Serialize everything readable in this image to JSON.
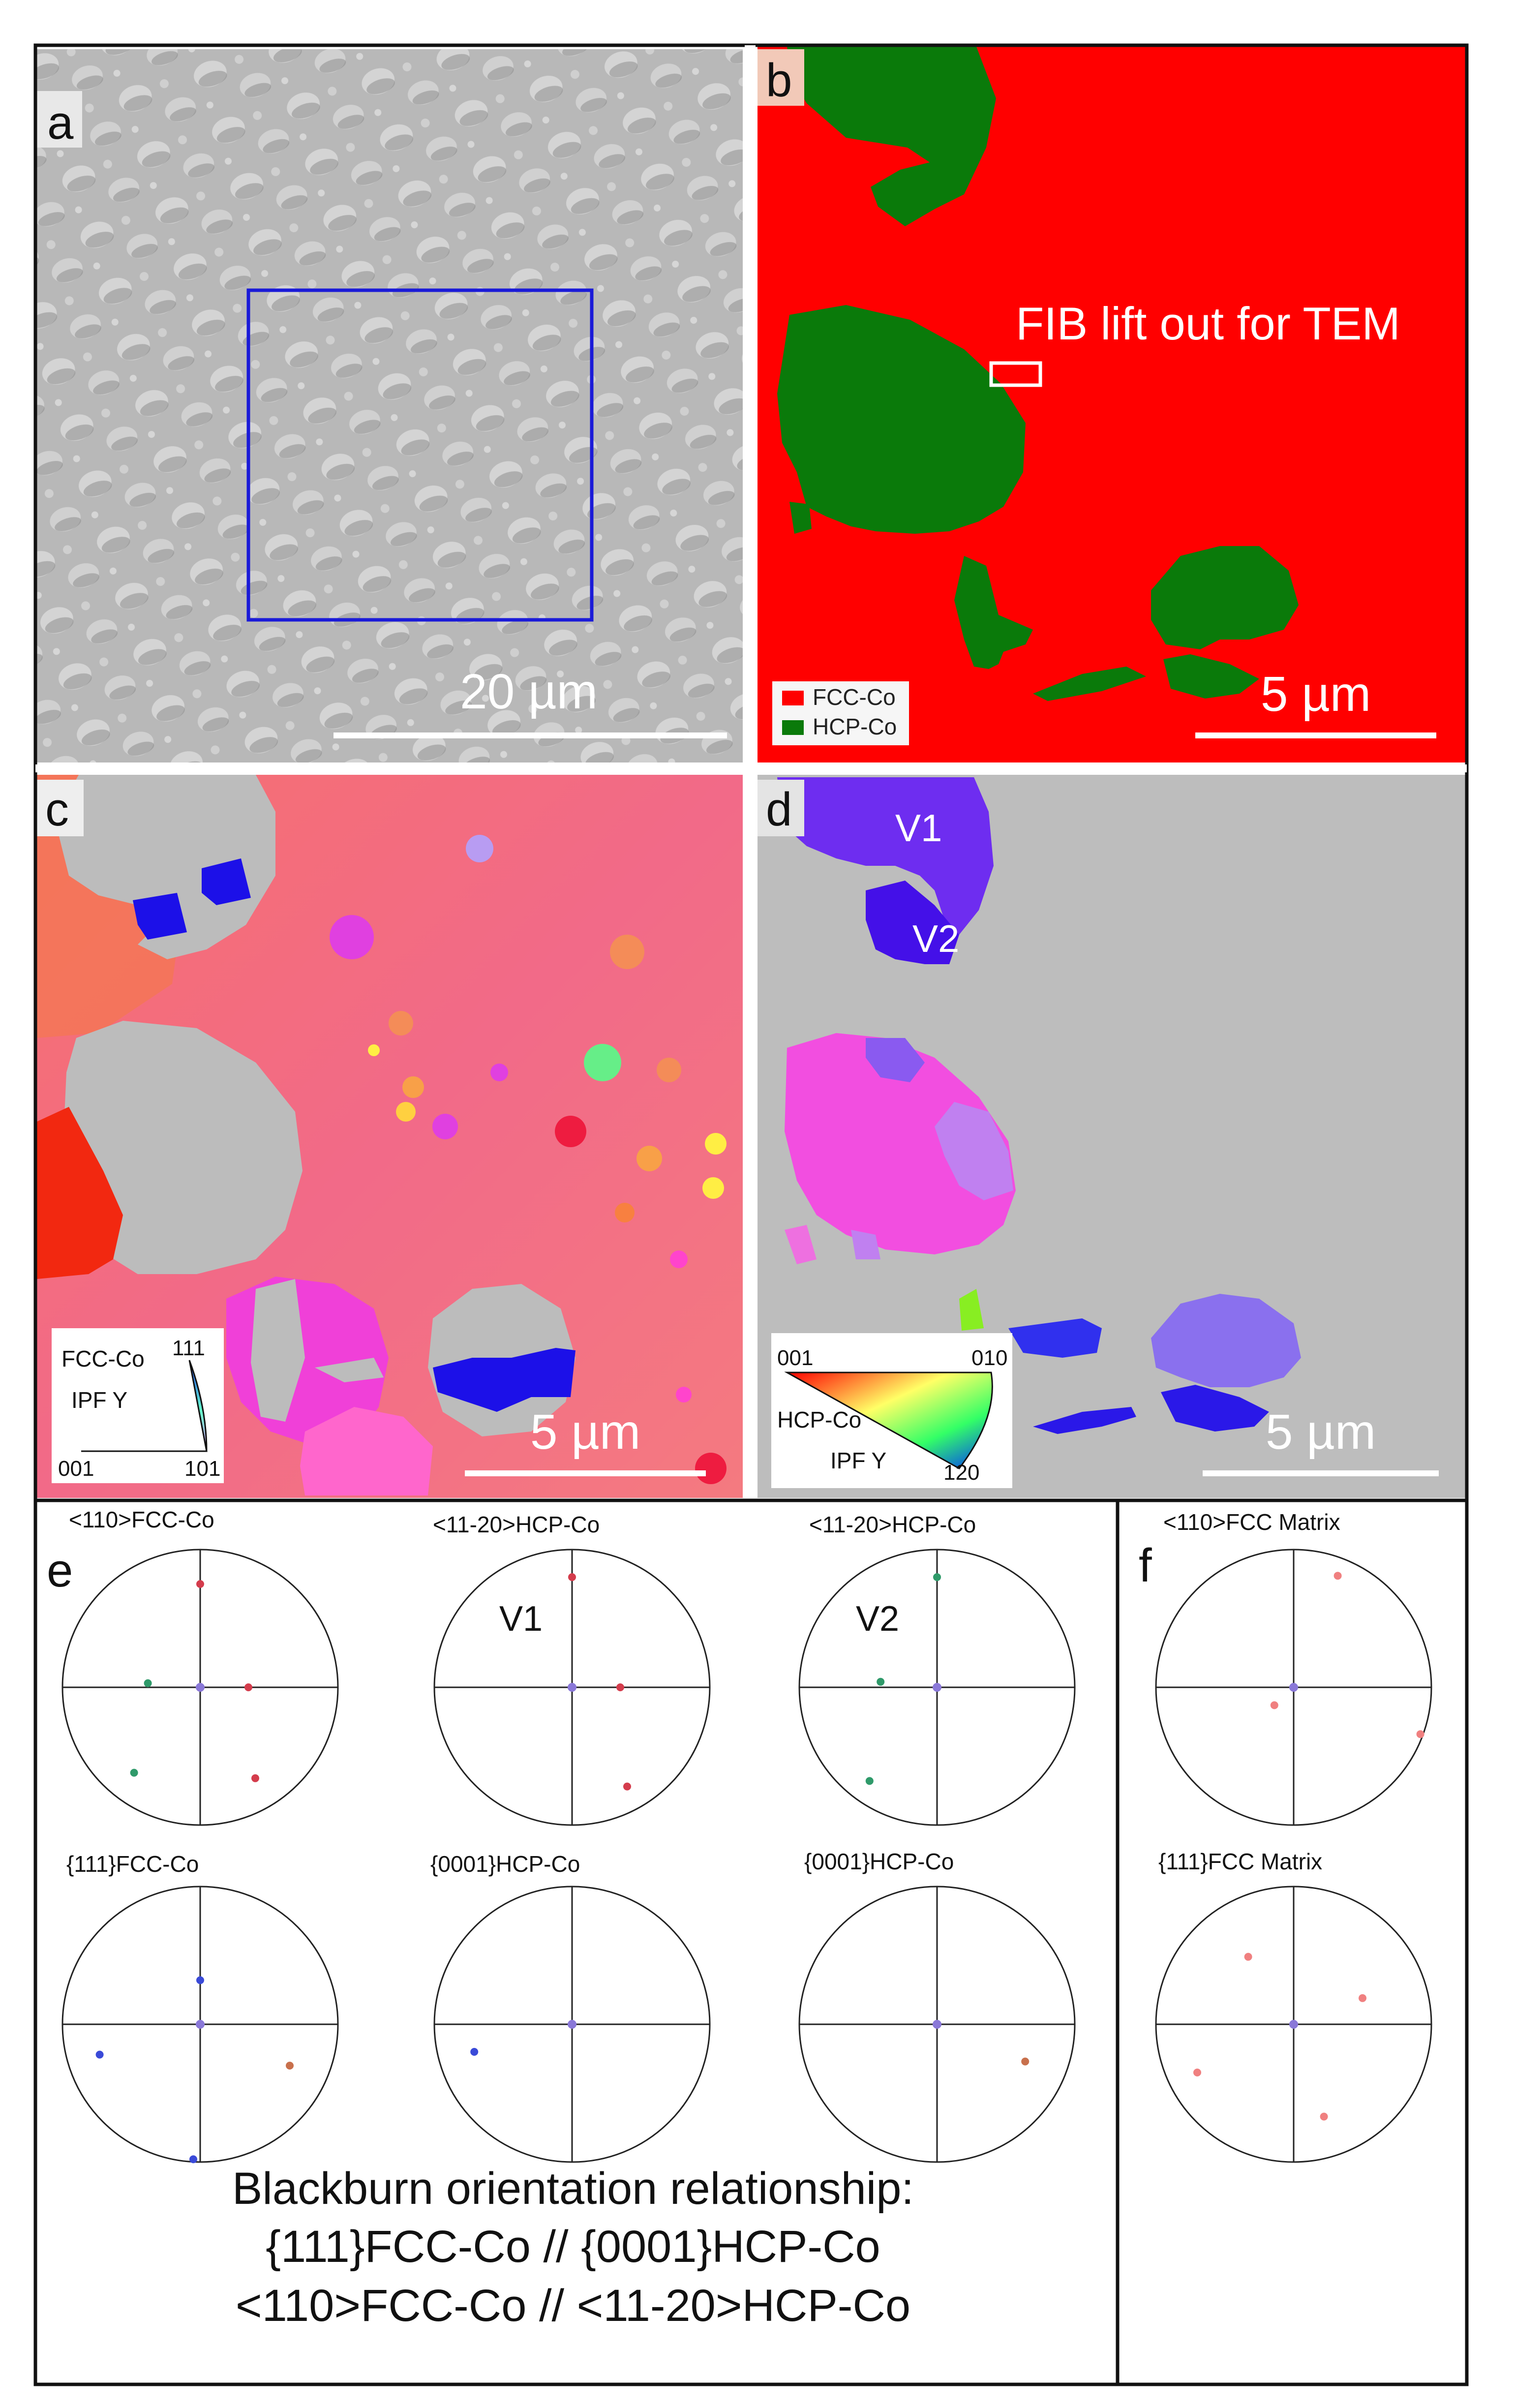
{
  "panels": {
    "a": {
      "letter": "a",
      "scalebar": "20 µm"
    },
    "b": {
      "letter": "b",
      "annotation": "FIB lift out for TEM",
      "legend": [
        {
          "label": "FCC-Co",
          "color": "#ff0000"
        },
        {
          "label": "HCP-Co",
          "color": "#0a7a0a"
        }
      ],
      "scalebar": "5 µm"
    },
    "c": {
      "letter": "c",
      "scalebar": "5 µm",
      "key": {
        "phase": "FCC-Co",
        "ipf": "IPF Y",
        "corners": [
          "111",
          "001",
          "101"
        ]
      }
    },
    "d": {
      "letter": "d",
      "variants": [
        "V1",
        "V2"
      ],
      "scalebar": "5 µm",
      "key": {
        "phase": "HCP-Co",
        "ipf": "IPF Y",
        "corners": [
          "001",
          "010",
          "120"
        ]
      }
    },
    "e": {
      "letter": "e",
      "variant_labels": [
        "V1",
        "V2"
      ],
      "titles_top": [
        "<110>FCC-Co",
        "<11-20>HCP-Co",
        "<11-20>HCP-Co"
      ],
      "titles_bottom": [
        "{111}FCC-Co",
        "{0001}HCP-Co",
        "{0001}HCP-Co"
      ],
      "caption": [
        "Blackburn orientation relationship:",
        "{111}FCC-Co // {0001}HCP-Co",
        "<110>FCC-Co // <11-20>HCP-Co"
      ]
    },
    "f": {
      "letter": "f",
      "titles": [
        "<110>FCC Matrix",
        "{111}FCC Matrix"
      ]
    }
  },
  "colors": {
    "fcc_map": "#ff0000",
    "hcp_map": "#0a7a0a",
    "sem_box": "#1a1ad8",
    "ipf_background": "#f46a78",
    "hcp_grey": "#bdbdbd"
  }
}
